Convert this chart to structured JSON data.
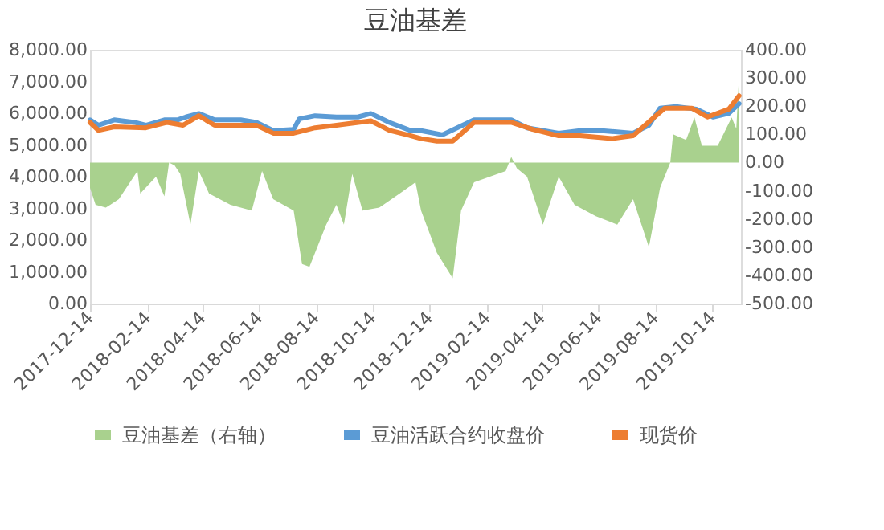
{
  "chart_data": {
    "type": "line",
    "title": "豆油基差",
    "xlim": [
      "2017-12-14",
      "2019-11-14"
    ],
    "xticks": [
      "2017-12-14",
      "2018-02-14",
      "2018-04-14",
      "2018-06-14",
      "2018-08-14",
      "2018-10-14",
      "2018-12-14",
      "2019-02-14",
      "2019-04-14",
      "2019-06-14",
      "2019-08-14",
      "2019-10-14"
    ],
    "ylim": [
      0,
      8000
    ],
    "yticks": [
      {
        "value": 0,
        "label": "0.00"
      },
      {
        "value": 1000,
        "label": "1,000.00"
      },
      {
        "value": 2000,
        "label": "2,000.00"
      },
      {
        "value": 3000,
        "label": "3,000.00"
      },
      {
        "value": 4000,
        "label": "4,000.00"
      },
      {
        "value": 5000,
        "label": "5,000.00"
      },
      {
        "value": 6000,
        "label": "6,000.00"
      },
      {
        "value": 7000,
        "label": "7,000.00"
      },
      {
        "value": 8000,
        "label": "8,000.00"
      }
    ],
    "y2lim": [
      -500,
      400
    ],
    "y2ticks": [
      {
        "value": -500,
        "label": "-500.00"
      },
      {
        "value": -400,
        "label": "-400.00"
      },
      {
        "value": -300,
        "label": "-300.00"
      },
      {
        "value": -200,
        "label": "-200.00"
      },
      {
        "value": -100,
        "label": "-100.00"
      },
      {
        "value": 0,
        "label": "0.00"
      },
      {
        "value": 100,
        "label": "100.00"
      },
      {
        "value": 200,
        "label": "200.00"
      },
      {
        "value": 300,
        "label": "300.00"
      },
      {
        "value": 400,
        "label": "400.00"
      }
    ],
    "grid": false,
    "legend": "bottom",
    "line_style": "solid",
    "marker": "none",
    "series": [
      {
        "name": "豆油基差（右轴）",
        "type": "area",
        "axis": "y2",
        "color": "#a9d18e",
        "x": [
          "2017-12-14",
          "2017-12-20",
          "2017-12-31",
          "2018-01-14",
          "2018-02-03",
          "2018-02-06",
          "2018-02-23",
          "2018-03-04",
          "2018-03-09",
          "2018-03-15",
          "2018-03-21",
          "2018-04-01",
          "2018-04-10",
          "2018-04-21",
          "2018-05-14",
          "2018-06-06",
          "2018-06-17",
          "2018-06-29",
          "2018-07-21",
          "2018-07-30",
          "2018-08-07",
          "2018-08-25",
          "2018-09-05",
          "2018-09-13",
          "2018-09-22",
          "2018-10-03",
          "2018-10-21",
          "2018-11-12",
          "2018-11-29",
          "2018-12-05",
          "2018-12-22",
          "2019-01-08",
          "2019-01-17",
          "2019-01-31",
          "2019-02-17",
          "2019-03-06",
          "2019-03-12",
          "2019-03-18",
          "2019-03-29",
          "2019-04-15",
          "2019-05-02",
          "2019-05-19",
          "2019-06-11",
          "2019-07-04",
          "2019-07-21",
          "2019-08-07",
          "2019-08-19",
          "2019-08-30",
          "2019-09-02",
          "2019-09-16",
          "2019-09-25",
          "2019-10-03",
          "2019-10-20",
          "2019-11-04",
          "2019-11-09",
          "2019-11-12"
        ],
        "values": [
          -90,
          -150,
          -160,
          -130,
          -30,
          -110,
          -50,
          -120,
          0,
          -10,
          -40,
          -220,
          -30,
          -110,
          -150,
          -170,
          -30,
          -130,
          -170,
          -360,
          -370,
          -220,
          -150,
          -220,
          -40,
          -170,
          -160,
          -110,
          -70,
          -170,
          -320,
          -410,
          -170,
          -70,
          -50,
          -30,
          20,
          -20,
          -50,
          -220,
          -50,
          -150,
          -190,
          -220,
          -130,
          -300,
          -90,
          0,
          100,
          80,
          160,
          60,
          60,
          160,
          120,
          310
        ]
      },
      {
        "name": "豆油活跃合约收盘价",
        "type": "line",
        "color": "#5b9bd5",
        "x": [
          "2017-12-14",
          "2017-12-23",
          "2018-01-09",
          "2018-01-31",
          "2018-02-12",
          "2018-03-04",
          "2018-03-18",
          "2018-03-27",
          "2018-04-10",
          "2018-04-27",
          "2018-05-25",
          "2018-06-11",
          "2018-06-29",
          "2018-07-21",
          "2018-07-27",
          "2018-08-13",
          "2018-09-05",
          "2018-09-28",
          "2018-10-12",
          "2018-11-01",
          "2018-11-24",
          "2018-12-05",
          "2018-12-28",
          "2019-01-31",
          "2019-03-12",
          "2019-03-29",
          "2019-05-02",
          "2019-05-25",
          "2019-06-17",
          "2019-07-21",
          "2019-08-07",
          "2019-08-19",
          "2019-09-05",
          "2019-09-27",
          "2019-10-15",
          "2019-11-01",
          "2019-11-12"
        ],
        "values": [
          5790,
          5620,
          5790,
          5710,
          5620,
          5790,
          5790,
          5880,
          5990,
          5790,
          5790,
          5710,
          5450,
          5490,
          5820,
          5920,
          5880,
          5880,
          5990,
          5710,
          5450,
          5450,
          5320,
          5790,
          5790,
          5540,
          5370,
          5450,
          5450,
          5370,
          5620,
          6160,
          6210,
          6130,
          5880,
          6000,
          6300
        ]
      },
      {
        "name": "现货价",
        "type": "line",
        "color": "#ed7d31",
        "x": [
          "2017-12-14",
          "2017-12-23",
          "2018-01-09",
          "2018-02-12",
          "2018-03-07",
          "2018-03-24",
          "2018-04-10",
          "2018-04-27",
          "2018-06-11",
          "2018-06-29",
          "2018-07-21",
          "2018-08-13",
          "2018-09-05",
          "2018-10-12",
          "2018-11-01",
          "2018-11-24",
          "2018-12-05",
          "2018-12-22",
          "2019-01-08",
          "2019-01-31",
          "2019-03-12",
          "2019-04-04",
          "2019-05-02",
          "2019-05-25",
          "2019-06-28",
          "2019-07-21",
          "2019-08-13",
          "2019-08-24",
          "2019-09-22",
          "2019-10-09",
          "2019-11-01",
          "2019-11-12"
        ],
        "values": [
          5710,
          5460,
          5570,
          5540,
          5710,
          5620,
          5920,
          5620,
          5620,
          5370,
          5370,
          5540,
          5620,
          5760,
          5460,
          5290,
          5200,
          5120,
          5120,
          5710,
          5710,
          5490,
          5290,
          5290,
          5200,
          5290,
          5880,
          6160,
          6160,
          5880,
          6130,
          6550
        ]
      }
    ]
  }
}
